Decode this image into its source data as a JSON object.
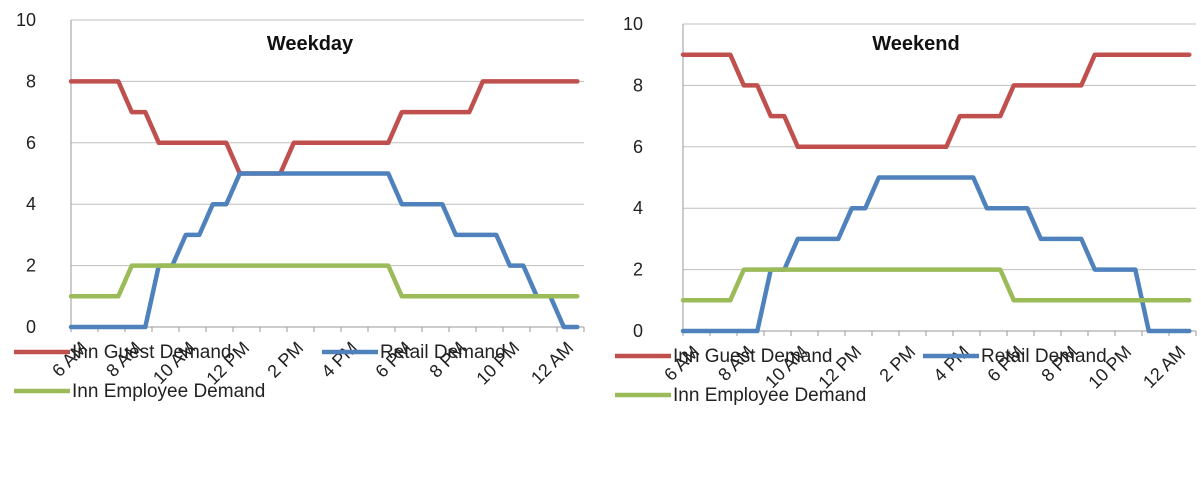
{
  "chart_data": [
    {
      "type": "line",
      "title": "Weekday",
      "x": [
        "6 AM",
        "7 AM",
        "8 AM",
        "9 AM",
        "10 AM",
        "11 AM",
        "12 PM",
        "1 PM",
        "2 PM",
        "3 PM",
        "4 PM",
        "5 PM",
        "6 PM",
        "7 PM",
        "8 PM",
        "9 PM",
        "10 PM",
        "11 PM",
        "12 AM"
      ],
      "xtick_labels": [
        "6 AM",
        "8 AM",
        "10 AM",
        "12 PM",
        "2 PM",
        "4 PM",
        "6 PM",
        "8 PM",
        "10 PM",
        "12 AM"
      ],
      "ylim": [
        0,
        10
      ],
      "yticks": [
        0,
        2,
        4,
        6,
        8,
        10
      ],
      "grid": true,
      "legend_placement": "bottom",
      "series": [
        {
          "name": "Inn Guest Demand",
          "color": "#c0504d",
          "values": [
            8,
            8,
            7,
            6,
            6,
            6,
            5,
            5,
            6,
            6,
            6,
            6,
            7,
            7,
            7,
            8,
            8,
            8,
            8
          ]
        },
        {
          "name": "Retail Demand",
          "color": "#4f81bd",
          "values": [
            0,
            0,
            0,
            2,
            3,
            4,
            5,
            5,
            5,
            5,
            5,
            5,
            4,
            4,
            3,
            3,
            2,
            1,
            0
          ]
        },
        {
          "name": "Inn Employee Demand",
          "color": "#9bbb59",
          "values": [
            1,
            1,
            2,
            2,
            2,
            2,
            2,
            2,
            2,
            2,
            2,
            2,
            1,
            1,
            1,
            1,
            1,
            1,
            1
          ]
        }
      ]
    },
    {
      "type": "line",
      "title": "Weekend",
      "x": [
        "6 AM",
        "7 AM",
        "8 AM",
        "9 AM",
        "10 AM",
        "11 AM",
        "12 PM",
        "1 PM",
        "2 PM",
        "3 PM",
        "4 PM",
        "5 PM",
        "6 PM",
        "7 PM",
        "8 PM",
        "9 PM",
        "10 PM",
        "11 PM",
        "12 AM"
      ],
      "xtick_labels": [
        "6 AM",
        "8 AM",
        "10 AM",
        "12 PM",
        "2 PM",
        "4 PM",
        "6 PM",
        "8 PM",
        "10 PM",
        "12 AM"
      ],
      "ylim": [
        0,
        10
      ],
      "yticks": [
        0,
        2,
        4,
        6,
        8,
        10
      ],
      "grid": true,
      "legend_placement": "bottom",
      "series": [
        {
          "name": "Inn Guest Demand",
          "color": "#c0504d",
          "values": [
            9,
            9,
            8,
            7,
            6,
            6,
            6,
            6,
            6,
            6,
            7,
            7,
            8,
            8,
            8,
            9,
            9,
            9,
            9
          ]
        },
        {
          "name": "Retail Demand",
          "color": "#4f81bd",
          "values": [
            0,
            0,
            0,
            2,
            3,
            3,
            4,
            5,
            5,
            5,
            5,
            4,
            4,
            3,
            3,
            2,
            2,
            0,
            0
          ]
        },
        {
          "name": "Inn Employee Demand",
          "color": "#9bbb59",
          "values": [
            1,
            1,
            2,
            2,
            2,
            2,
            2,
            2,
            2,
            2,
            2,
            2,
            1,
            1,
            1,
            1,
            1,
            1,
            1
          ]
        }
      ]
    }
  ]
}
